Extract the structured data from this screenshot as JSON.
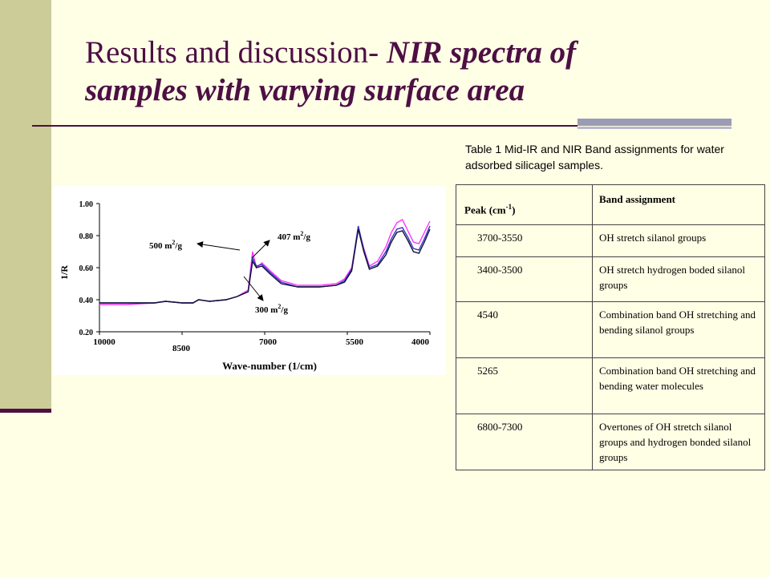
{
  "slide": {
    "title_plain": "Results and discussion- ",
    "title_italic": "NIR spectra of samples with varying surface area",
    "caption": "Table 1 Mid-IR and NIR Band assignments for water adsorbed silicagel samples."
  },
  "table": {
    "header_peak": "Peak (cm",
    "header_peak_sup": "-1",
    "header_peak_close": ")",
    "header_assignment": "Band assignment",
    "rows": [
      {
        "peak": "3700-3550",
        "assignment": "OH stretch silanol groups"
      },
      {
        "peak": "3400-3500",
        "assignment": "OH stretch hydrogen boded silanol groups"
      },
      {
        "peak": "4540",
        "assignment": "Combination band OH stretching and bending silanol groups"
      },
      {
        "peak": "5265",
        "assignment": "Combination band OH stretching and bending water molecules"
      },
      {
        "peak": "6800-7300",
        "assignment": "Overtones of OH stretch silanol groups and hydrogen bonded silanol groups"
      }
    ]
  },
  "chart_data": {
    "type": "line",
    "title": "",
    "xlabel": "Wave-number  (1/cm)",
    "ylabel": "1/R",
    "xlim": [
      10000,
      4000
    ],
    "ylim": [
      0.2,
      1.0
    ],
    "x_ticks": [
      "10000",
      "8500",
      "7000",
      "5500",
      "4000"
    ],
    "y_ticks": [
      "1.00",
      "0.80",
      "0.60",
      "0.40",
      "0.20"
    ],
    "annotations": [
      {
        "text": "500 m",
        "sup": "2",
        "unit": "/g"
      },
      {
        "text": "407 m",
        "sup": "2",
        "unit": "/g"
      },
      {
        "text": "300 m",
        "sup": "2",
        "unit": "/g"
      }
    ],
    "x": [
      10000,
      9500,
      9000,
      8800,
      8500,
      8300,
      8200,
      8000,
      7700,
      7500,
      7300,
      7220,
      7150,
      7050,
      6900,
      6700,
      6400,
      6000,
      5700,
      5550,
      5420,
      5300,
      5200,
      5100,
      4950,
      4800,
      4700,
      4600,
      4500,
      4400,
      4300,
      4200,
      4100,
      4000
    ],
    "series": [
      {
        "name": "500 m2/g",
        "color": "#ff33ff",
        "values": [
          0.37,
          0.37,
          0.38,
          0.39,
          0.38,
          0.38,
          0.4,
          0.39,
          0.4,
          0.42,
          0.46,
          0.7,
          0.6,
          0.63,
          0.58,
          0.52,
          0.49,
          0.49,
          0.5,
          0.53,
          0.6,
          0.85,
          0.72,
          0.61,
          0.64,
          0.73,
          0.82,
          0.88,
          0.9,
          0.83,
          0.76,
          0.75,
          0.82,
          0.89
        ]
      },
      {
        "name": "407 m2/g",
        "color": "#3333cc",
        "values": [
          0.38,
          0.38,
          0.38,
          0.39,
          0.38,
          0.38,
          0.4,
          0.39,
          0.4,
          0.42,
          0.45,
          0.66,
          0.61,
          0.62,
          0.57,
          0.51,
          0.48,
          0.48,
          0.49,
          0.52,
          0.59,
          0.86,
          0.71,
          0.6,
          0.62,
          0.7,
          0.78,
          0.84,
          0.85,
          0.79,
          0.72,
          0.71,
          0.78,
          0.86
        ]
      },
      {
        "name": "300 m2/g",
        "color": "#111133",
        "values": [
          0.38,
          0.38,
          0.38,
          0.39,
          0.38,
          0.38,
          0.4,
          0.39,
          0.4,
          0.42,
          0.45,
          0.64,
          0.6,
          0.61,
          0.56,
          0.5,
          0.48,
          0.48,
          0.49,
          0.51,
          0.58,
          0.84,
          0.7,
          0.59,
          0.61,
          0.68,
          0.76,
          0.82,
          0.83,
          0.77,
          0.7,
          0.69,
          0.76,
          0.84
        ]
      }
    ]
  }
}
